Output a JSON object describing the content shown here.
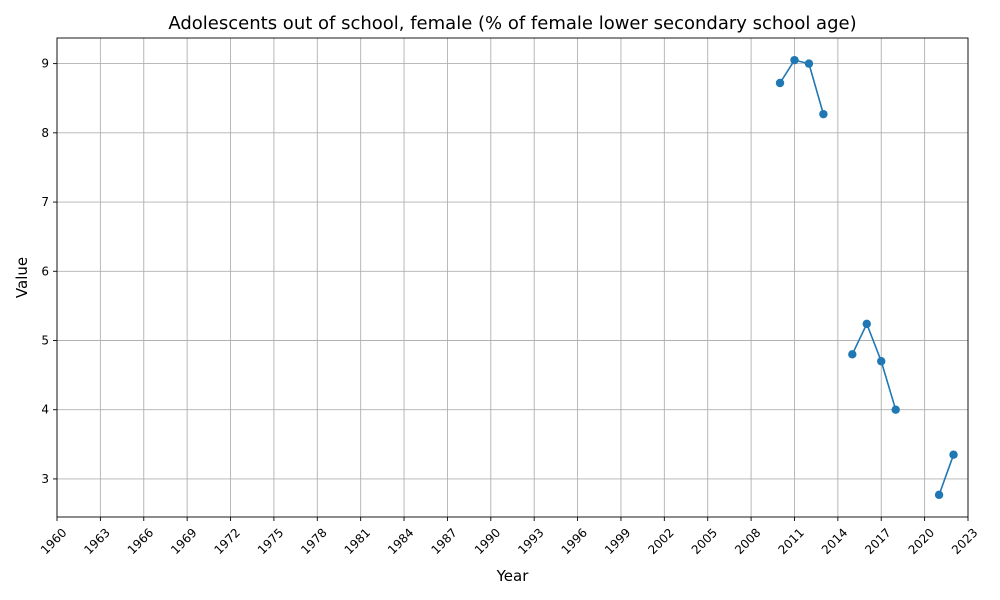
{
  "chart_data": {
    "type": "line",
    "title": "Adolescents out of school, female (% of female lower secondary school age)",
    "xlabel": "Year",
    "ylabel": "Value",
    "xlim": [
      1960,
      2023
    ],
    "ylim": [
      2.45,
      9.37
    ],
    "x_ticks": [
      1960,
      1963,
      1966,
      1969,
      1972,
      1975,
      1978,
      1981,
      1984,
      1987,
      1990,
      1993,
      1996,
      1999,
      2002,
      2005,
      2008,
      2011,
      2014,
      2017,
      2020,
      2023
    ],
    "y_ticks": [
      3,
      4,
      5,
      6,
      7,
      8,
      9
    ],
    "grid": true,
    "legend": false,
    "series": [
      {
        "color": "#1f77b4",
        "marker": "circle",
        "segments": [
          {
            "x": [
              2010,
              2011,
              2012,
              2013
            ],
            "y": [
              8.72,
              9.05,
              9.0,
              8.27
            ]
          },
          {
            "x": [
              2015,
              2016,
              2017,
              2018
            ],
            "y": [
              4.8,
              5.24,
              4.7,
              4.0
            ]
          },
          {
            "x": [
              2021,
              2022
            ],
            "y": [
              2.77,
              3.35
            ]
          }
        ]
      }
    ]
  }
}
